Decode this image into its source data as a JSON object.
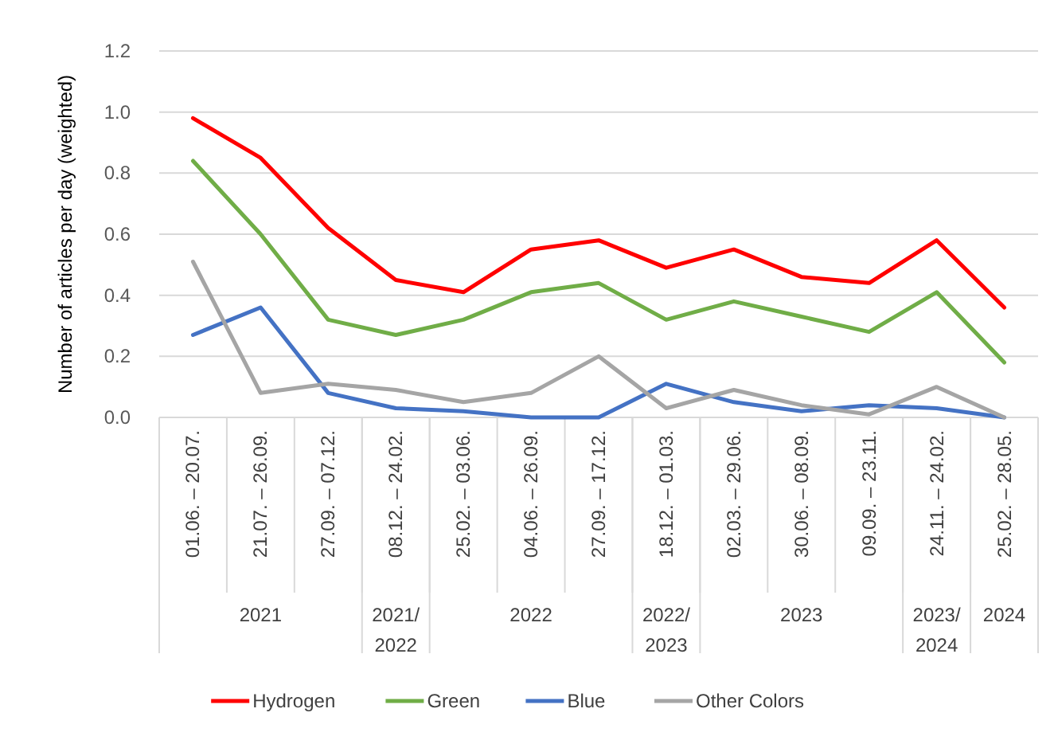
{
  "chart_data": {
    "type": "line",
    "ylabel": "Number of articles per day (weighted)",
    "categories": [
      "01.06. – 20.07.",
      "21.07. – 26.09.",
      "27.09. – 07.12.",
      "08.12. – 24.02.",
      "25.02. – 03.06.",
      "04.06. – 26.09.",
      "27.09. – 17.12.",
      "18.12. – 01.03.",
      "02.03. – 29.06.",
      "30.06. – 08.09.",
      "09.09. – 23.11.",
      "24.11. – 24.02.",
      "25.02. – 28.05."
    ],
    "series": [
      {
        "name": "Hydrogen",
        "color": "#ff0000",
        "values": [
          0.98,
          0.85,
          0.62,
          0.45,
          0.41,
          0.55,
          0.58,
          0.49,
          0.55,
          0.46,
          0.44,
          0.58,
          0.36
        ]
      },
      {
        "name": "Green",
        "color": "#70ad47",
        "values": [
          0.84,
          0.6,
          0.32,
          0.27,
          0.32,
          0.41,
          0.44,
          0.32,
          0.38,
          0.33,
          0.28,
          0.41,
          0.18
        ]
      },
      {
        "name": "Blue",
        "color": "#4472c4",
        "values": [
          0.27,
          0.36,
          0.08,
          0.03,
          0.02,
          0.0,
          0.0,
          0.11,
          0.05,
          0.02,
          0.04,
          0.03,
          0.0
        ]
      },
      {
        "name": "Other Colors",
        "color": "#a5a5a5",
        "values": [
          0.51,
          0.08,
          0.11,
          0.09,
          0.05,
          0.08,
          0.2,
          0.03,
          0.09,
          0.04,
          0.01,
          0.1,
          0.0
        ]
      }
    ],
    "ylim": [
      0,
      1.2
    ],
    "yticks": [
      {
        "value": 0,
        "label": "0.0"
      },
      {
        "value": 0.2,
        "label": "0.2"
      },
      {
        "value": 0.4,
        "label": "0.4"
      },
      {
        "value": 0.6,
        "label": "0.6"
      },
      {
        "value": 0.8,
        "label": "0.8"
      },
      {
        "value": 1,
        "label": "1.0"
      },
      {
        "value": 1.2,
        "label": "1.2"
      }
    ],
    "grid": "y",
    "legend": "bottom",
    "line_style": "solid",
    "marker": "none",
    "annotations": [
      "2021",
      "2021/\n2022",
      "2022",
      "2022/\n2023",
      "2023",
      "2023/\n2024",
      "2024"
    ]
  }
}
